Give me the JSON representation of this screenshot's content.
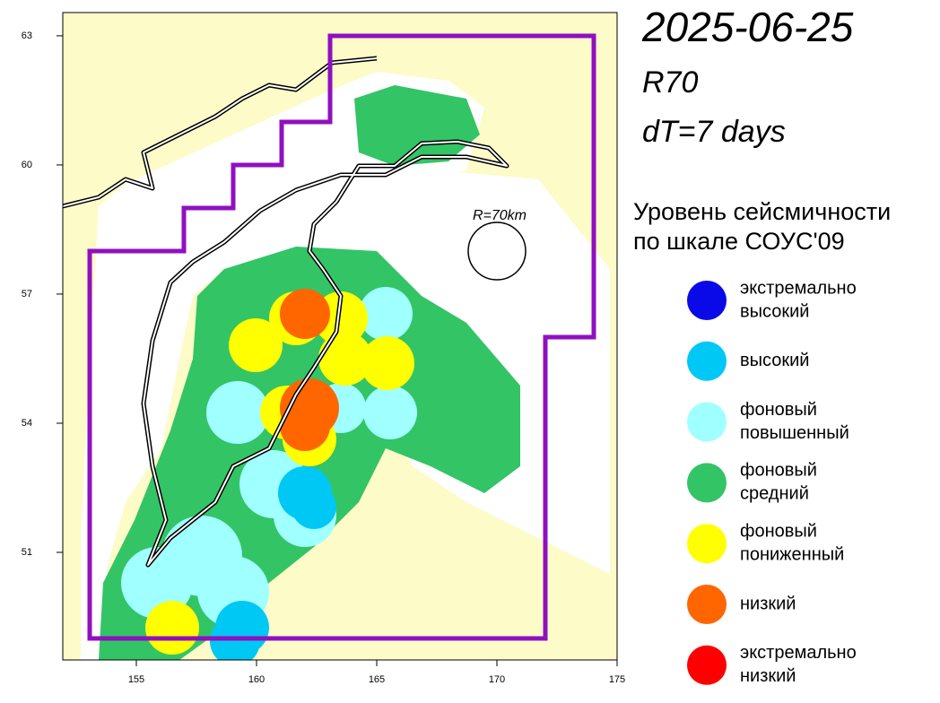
{
  "map": {
    "title": "2025-06-25",
    "radius": "R70",
    "period": "dT=7 days",
    "scale_label": "R=70km",
    "xlim": [
      151.94,
      175
    ],
    "ylim": [
      48.5,
      63.54
    ],
    "xticks": [
      155,
      160,
      165,
      170,
      175
    ],
    "yticks": [
      51,
      54,
      57,
      60,
      63
    ]
  },
  "legend": {
    "title_lines": [
      "Уровень сейсмичности",
      "по шкале СОУС'09"
    ],
    "items": [
      {
        "label_lines": [
          "экстремально",
          "высокий"
        ],
        "color": "#0a0ae8"
      },
      {
        "label_lines": [
          "высокий"
        ],
        "color": "#00c8f5"
      },
      {
        "label_lines": [
          "фоновый",
          "повышенный"
        ],
        "color": "#a0ffff"
      },
      {
        "label_lines": [
          "фоновый",
          "средний"
        ],
        "color": "#33c466"
      },
      {
        "label_lines": [
          "фоновый",
          "пониженный"
        ],
        "color": "#ffff00"
      },
      {
        "label_lines": [
          "низкий"
        ],
        "color": "#ff6600"
      },
      {
        "label_lines": [
          "экстремально",
          "низкий"
        ],
        "color": "#ff0000"
      }
    ]
  }
}
